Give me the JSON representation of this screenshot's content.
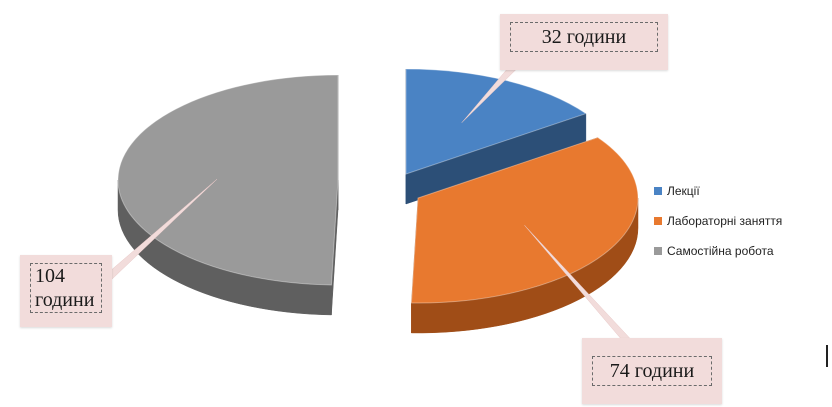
{
  "chart_data": {
    "type": "pie",
    "title": "",
    "categories": [
      "Лекції",
      "Лабораторні заняття",
      "Самостійна робота"
    ],
    "values": [
      32,
      74,
      104
    ],
    "data_labels": [
      "32 години",
      "74 години",
      "104\nгодини"
    ],
    "colors": [
      "#4a83c4",
      "#e8792f",
      "#9a9a9a"
    ],
    "side_colors": [
      "#2c4f77",
      "#a04d17",
      "#5f5f5f"
    ],
    "exploded": true,
    "style": "3d",
    "legend_position": "right"
  }
}
